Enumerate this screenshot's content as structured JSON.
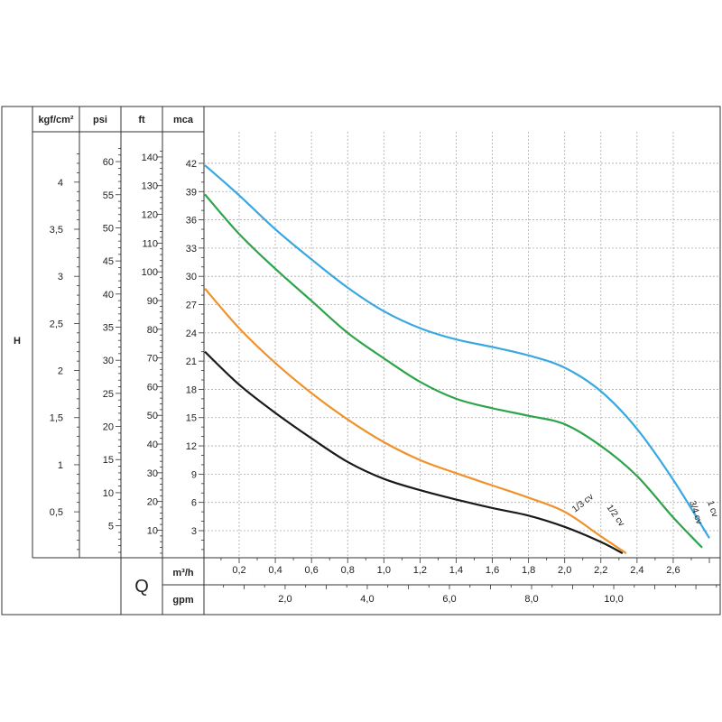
{
  "chart_data": {
    "type": "line",
    "title": "",
    "ylabel": "H",
    "xlabel": "Q",
    "grid": true,
    "y_axes": [
      {
        "unit": "kgf/cm²",
        "ticks": [
          "0,5",
          "1",
          "1,5",
          "2",
          "2,5",
          "3",
          "3,5",
          "4"
        ],
        "tick_values": [
          0.5,
          1,
          1.5,
          2,
          2.5,
          3,
          3.5,
          4
        ]
      },
      {
        "unit": "psi",
        "ticks": [
          "5",
          "10",
          "15",
          "20",
          "25",
          "30",
          "35",
          "40",
          "45",
          "50",
          "55",
          "60"
        ],
        "tick_values": [
          5,
          10,
          15,
          20,
          25,
          30,
          35,
          40,
          45,
          50,
          55,
          60
        ]
      },
      {
        "unit": "ft",
        "ticks": [
          "10",
          "20",
          "30",
          "40",
          "50",
          "60",
          "70",
          "80",
          "90",
          "100",
          "110",
          "120",
          "130",
          "140"
        ],
        "tick_values": [
          10,
          20,
          30,
          40,
          50,
          60,
          70,
          80,
          90,
          100,
          110,
          120,
          130,
          140
        ]
      },
      {
        "unit": "mca",
        "ticks": [
          "3",
          "6",
          "9",
          "12",
          "15",
          "18",
          "21",
          "24",
          "27",
          "30",
          "33",
          "36",
          "39",
          "42"
        ],
        "tick_values": [
          3,
          6,
          9,
          12,
          15,
          18,
          21,
          24,
          27,
          30,
          33,
          36,
          39,
          42
        ]
      }
    ],
    "x_axes": [
      {
        "unit": "m³/h",
        "ticks": [
          "0,2",
          "0,4",
          "0,6",
          "0,8",
          "1,0",
          "1,2",
          "1,4",
          "1,6",
          "1,8",
          "2,0",
          "2,2",
          "2,4",
          "2,6"
        ],
        "tick_values": [
          0.2,
          0.4,
          0.6,
          0.8,
          1.0,
          1.2,
          1.4,
          1.6,
          1.8,
          2.0,
          2.2,
          2.4,
          2.6
        ]
      },
      {
        "unit": "gpm",
        "ticks": [
          "2,0",
          "4,0",
          "6,0",
          "8,0",
          "10,0"
        ],
        "tick_values": [
          2,
          4,
          6,
          8,
          10
        ]
      }
    ],
    "xlim": [
      0,
      2.82
    ],
    "ylim": [
      0,
      44
    ],
    "series": [
      {
        "name": "1/3 cv",
        "color": "#1a1a1a",
        "x": [
          0,
          0.2,
          0.4,
          0.6,
          0.8,
          1.0,
          1.2,
          1.4,
          1.6,
          1.8,
          2.0,
          2.2,
          2.32
        ],
        "y": [
          22.0,
          18.5,
          15.5,
          12.8,
          10.3,
          8.5,
          7.3,
          6.3,
          5.4,
          4.6,
          3.4,
          1.8,
          0.6
        ]
      },
      {
        "name": "1/2 cv",
        "color": "#f0922c",
        "x": [
          0,
          0.2,
          0.4,
          0.6,
          0.8,
          1.0,
          1.2,
          1.4,
          1.6,
          1.8,
          2.0,
          2.2,
          2.34
        ],
        "y": [
          28.7,
          24.5,
          20.8,
          17.6,
          14.8,
          12.4,
          10.5,
          9.1,
          7.8,
          6.5,
          5.0,
          2.4,
          0.6
        ]
      },
      {
        "name": "3/4 cv",
        "color": "#2ea44a",
        "x": [
          0,
          0.2,
          0.4,
          0.6,
          0.8,
          1.0,
          1.2,
          1.4,
          1.6,
          1.8,
          2.0,
          2.2,
          2.4,
          2.6,
          2.76
        ],
        "y": [
          38.7,
          34.5,
          30.8,
          27.4,
          24.0,
          21.3,
          18.8,
          17.0,
          16.0,
          15.2,
          14.3,
          12.0,
          8.8,
          4.4,
          1.2
        ]
      },
      {
        "name": "1 cv",
        "color": "#3aa8e0",
        "x": [
          0,
          0.2,
          0.4,
          0.6,
          0.8,
          1.0,
          1.2,
          1.4,
          1.6,
          1.8,
          2.0,
          2.2,
          2.4,
          2.6,
          2.8
        ],
        "y": [
          41.8,
          38.6,
          35.0,
          31.8,
          28.8,
          26.3,
          24.5,
          23.3,
          22.5,
          21.6,
          20.3,
          17.8,
          13.8,
          8.4,
          2.2
        ]
      }
    ]
  }
}
